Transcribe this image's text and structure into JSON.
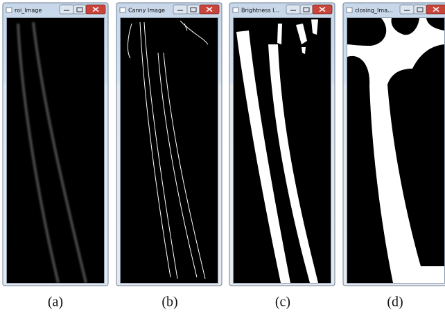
{
  "windows": [
    {
      "title": "roi_Image",
      "caption": "(a)"
    },
    {
      "title": "Canny Image",
      "caption": "(b)"
    },
    {
      "title": "Brightness I...",
      "caption": "(c)"
    },
    {
      "title": "closing_Ima...",
      "caption": "(d)"
    }
  ]
}
